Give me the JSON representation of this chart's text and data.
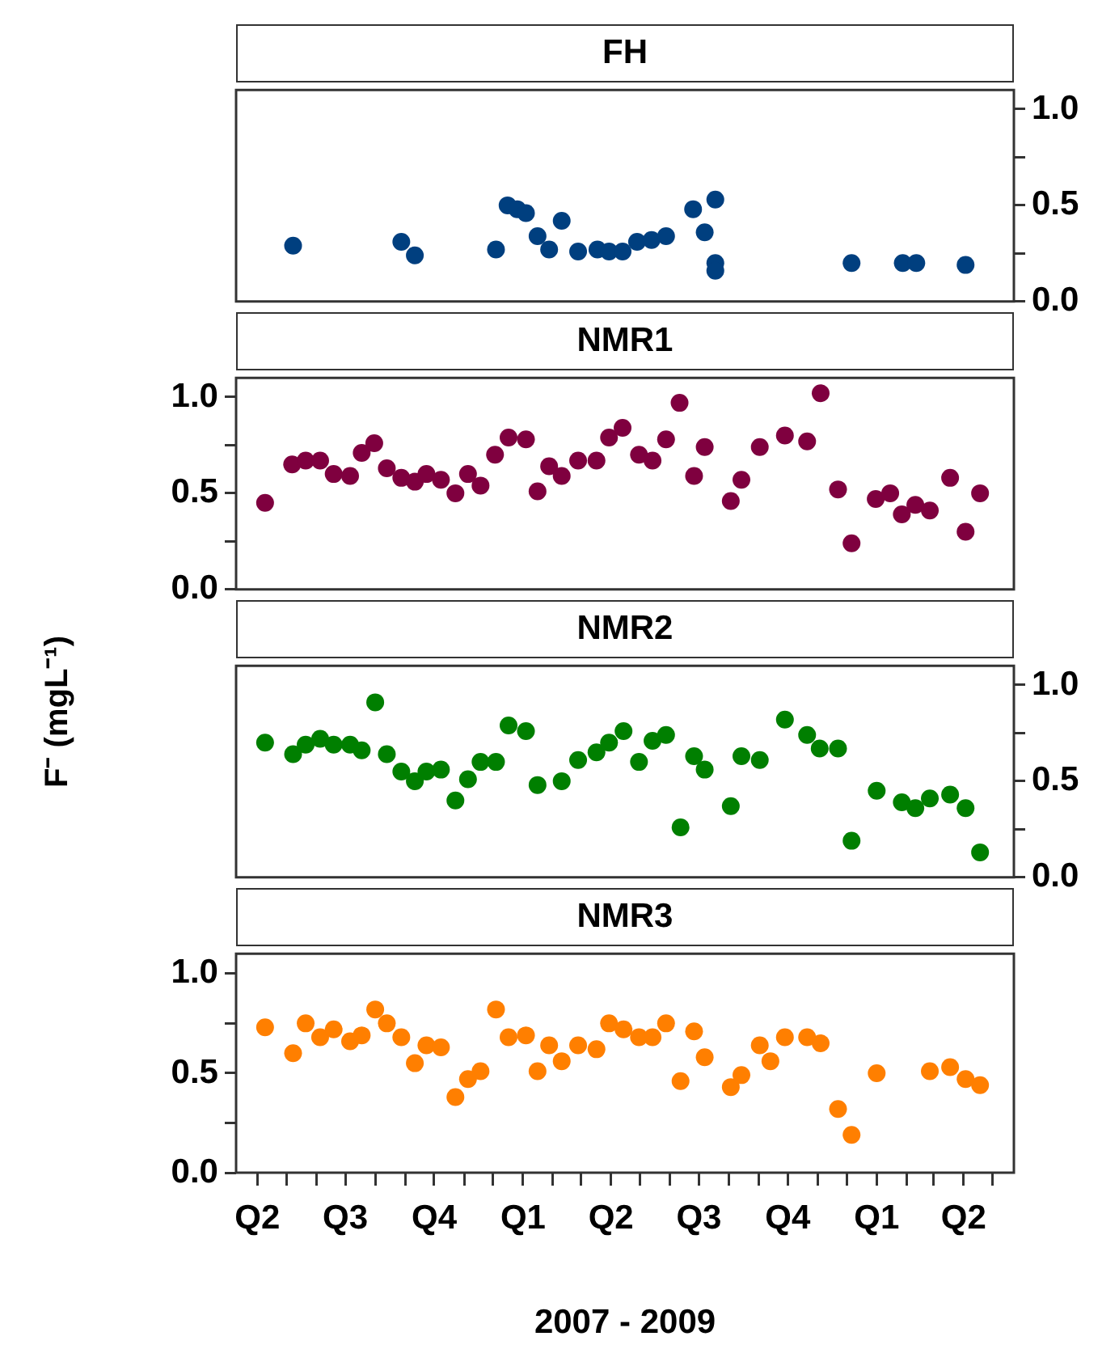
{
  "chart_data": [
    {
      "type": "scatter",
      "title": "FH",
      "marker": "circle",
      "tick_labels": "y",
      "xlim": [
        "2007-03-10",
        "2009-05-23"
      ],
      "y2lim": [
        0,
        1.1
      ],
      "y2ticks": [
        {
          "value": 0,
          "label": "0.0"
        },
        {
          "value": 0.25,
          "label": null
        },
        {
          "value": 0.5,
          "label": "0.5"
        },
        {
          "value": 0.75,
          "label": null
        },
        {
          "value": 1,
          "label": "1.0"
        }
      ],
      "series": [
        {
          "color": "#003f7f",
          "axis": "y2",
          "x": [
            "2007-05-08",
            "2007-08-28",
            "2007-09-11",
            "2007-12-04",
            "2007-12-16",
            "2007-12-26",
            "2008-01-04",
            "2008-01-16",
            "2008-01-28",
            "2008-02-10",
            "2008-02-27",
            "2008-03-18",
            "2008-03-30",
            "2008-04-13",
            "2008-04-28",
            "2008-05-13",
            "2008-05-28",
            "2008-06-25",
            "2008-07-07",
            "2008-07-18",
            "2008-07-18",
            "2008-07-18",
            "2008-12-06",
            "2009-01-28",
            "2009-02-11",
            "2009-04-03"
          ],
          "values": [
            0.29,
            0.31,
            0.24,
            0.27,
            0.5,
            0.48,
            0.46,
            0.34,
            0.27,
            0.42,
            0.26,
            0.27,
            0.26,
            0.26,
            0.31,
            0.32,
            0.34,
            0.48,
            0.36,
            0.53,
            0.2,
            0.16,
            0.2,
            0.2,
            0.2,
            0.19
          ]
        }
      ]
    },
    {
      "type": "scatter",
      "title": "NMR1",
      "ylabel": "F⁻ (mgL⁻¹)",
      "marker": "circle",
      "tick_labels": "y",
      "xlim": [
        "2007-03-10",
        "2009-05-23"
      ],
      "ylim": [
        0,
        1.1
      ],
      "yticks": [
        {
          "value": 0,
          "label": "0.0"
        },
        {
          "value": 0.25,
          "label": null
        },
        {
          "value": 0.5,
          "label": "0.5"
        },
        {
          "value": 0.75,
          "label": null
        },
        {
          "value": 1,
          "label": "1.0"
        }
      ],
      "series": [
        {
          "color": "#7f003f",
          "x": [
            "2007-04-09",
            "2007-05-07",
            "2007-05-21",
            "2007-06-05",
            "2007-06-19",
            "2007-07-06",
            "2007-07-18",
            "2007-07-31",
            "2007-08-13",
            "2007-08-28",
            "2007-09-11",
            "2007-09-23",
            "2007-10-08",
            "2007-10-23",
            "2007-11-05",
            "2007-11-18",
            "2007-12-03",
            "2007-12-17",
            "2008-01-04",
            "2008-01-16",
            "2008-01-28",
            "2008-02-10",
            "2008-02-27",
            "2008-03-17",
            "2008-03-30",
            "2008-04-13",
            "2008-04-30",
            "2008-05-14",
            "2008-05-28",
            "2008-06-11",
            "2008-06-26",
            "2008-07-07",
            "2008-08-03",
            "2008-08-14",
            "2008-09-02",
            "2008-09-28",
            "2008-10-21",
            "2008-11-04",
            "2008-11-22",
            "2008-12-06",
            "2008-12-31",
            "2009-01-15",
            "2009-01-27",
            "2009-02-10",
            "2009-02-25",
            "2009-03-18",
            "2009-04-03",
            "2009-04-18"
          ],
          "values": [
            0.45,
            0.65,
            0.67,
            0.67,
            0.6,
            0.59,
            0.71,
            0.76,
            0.63,
            0.58,
            0.56,
            0.6,
            0.57,
            0.5,
            0.6,
            0.54,
            0.7,
            0.79,
            0.78,
            0.51,
            0.64,
            0.59,
            0.67,
            0.67,
            0.79,
            0.84,
            0.7,
            0.67,
            0.78,
            0.97,
            0.59,
            0.74,
            0.46,
            0.57,
            0.74,
            0.8,
            0.77,
            1.02,
            0.52,
            0.24,
            0.47,
            0.5,
            0.39,
            0.44,
            0.41,
            0.58,
            0.3,
            0.5
          ]
        }
      ]
    },
    {
      "type": "scatter",
      "title": "NMR2",
      "marker": "circle",
      "tick_labels": "y",
      "xlim": [
        "2007-03-10",
        "2009-05-23"
      ],
      "y2lim": [
        0,
        1.1
      ],
      "y2ticks": [
        {
          "value": 0,
          "label": "0.0"
        },
        {
          "value": 0.25,
          "label": null
        },
        {
          "value": 0.5,
          "label": "0.5"
        },
        {
          "value": 0.75,
          "label": null
        },
        {
          "value": 1,
          "label": "1.0"
        }
      ],
      "series": [
        {
          "color": "#007f00",
          "axis": "y2",
          "x": [
            "2007-04-09",
            "2007-05-08",
            "2007-05-21",
            "2007-06-05",
            "2007-06-19",
            "2007-07-06",
            "2007-07-18",
            "2007-08-01",
            "2007-08-13",
            "2007-08-28",
            "2007-09-11",
            "2007-09-23",
            "2007-10-08",
            "2007-10-23",
            "2007-11-05",
            "2007-11-18",
            "2007-12-04",
            "2007-12-17",
            "2008-01-04",
            "2008-01-16",
            "2008-02-10",
            "2008-02-27",
            "2008-03-17",
            "2008-03-30",
            "2008-04-14",
            "2008-04-30",
            "2008-05-14",
            "2008-05-28",
            "2008-06-12",
            "2008-06-26",
            "2008-07-07",
            "2008-08-03",
            "2008-08-14",
            "2008-09-02",
            "2008-09-28",
            "2008-10-21",
            "2008-11-03",
            "2008-11-22",
            "2008-12-06",
            "2009-01-01",
            "2009-01-27",
            "2009-02-10",
            "2009-02-25",
            "2009-03-18",
            "2009-04-03",
            "2009-04-18"
          ],
          "values": [
            0.7,
            0.64,
            0.69,
            0.72,
            0.69,
            0.69,
            0.66,
            0.91,
            0.64,
            0.55,
            0.5,
            0.55,
            0.56,
            0.4,
            0.51,
            0.6,
            0.6,
            0.79,
            0.76,
            0.48,
            0.5,
            0.61,
            0.65,
            0.7,
            0.76,
            0.6,
            0.71,
            0.74,
            0.26,
            0.63,
            0.56,
            0.37,
            0.63,
            0.61,
            0.82,
            0.74,
            0.67,
            0.67,
            0.19,
            0.45,
            0.39,
            0.36,
            0.41,
            0.43,
            0.36,
            0.13
          ]
        }
      ]
    },
    {
      "type": "scatter",
      "title": "NMR3",
      "xlabel": "2007 - 2009",
      "marker": "circle",
      "xlim": [
        "2007-03-10",
        "2009-05-23"
      ],
      "xticks": [
        {
          "value": "2007-04",
          "label": "Q2"
        },
        {
          "value": "2007-05",
          "label": null
        },
        {
          "value": "2007-06",
          "label": null
        },
        {
          "value": "2007-07",
          "label": "Q3"
        },
        {
          "value": "2007-08",
          "label": null
        },
        {
          "value": "2007-09",
          "label": null
        },
        {
          "value": "2007-10",
          "label": "Q4"
        },
        {
          "value": "2007-11",
          "label": null
        },
        {
          "value": "2007-12",
          "label": null
        },
        {
          "value": "2008-01",
          "label": "Q1"
        },
        {
          "value": "2008-02",
          "label": null
        },
        {
          "value": "2008-03",
          "label": null
        },
        {
          "value": "2008-04",
          "label": "Q2"
        },
        {
          "value": "2008-05",
          "label": null
        },
        {
          "value": "2008-06",
          "label": null
        },
        {
          "value": "2008-07",
          "label": "Q3"
        },
        {
          "value": "2008-08",
          "label": null
        },
        {
          "value": "2008-09",
          "label": null
        },
        {
          "value": "2008-10",
          "label": "Q4"
        },
        {
          "value": "2008-11",
          "label": null
        },
        {
          "value": "2008-12",
          "label": null
        },
        {
          "value": "2009-01",
          "label": "Q1"
        },
        {
          "value": "2009-02",
          "label": null
        },
        {
          "value": "2009-03",
          "label": null
        },
        {
          "value": "2009-04",
          "label": "Q2"
        },
        {
          "value": "2009-05",
          "label": null
        }
      ],
      "ylim": [
        0,
        1.1
      ],
      "yticks": [
        {
          "value": 0,
          "label": "0.0"
        },
        {
          "value": 0.25,
          "label": null
        },
        {
          "value": 0.5,
          "label": "0.5"
        },
        {
          "value": 0.75,
          "label": null
        },
        {
          "value": 1,
          "label": "1.0"
        }
      ],
      "series": [
        {
          "color": "#ff7f00",
          "x": [
            "2007-04-09",
            "2007-05-08",
            "2007-05-21",
            "2007-06-05",
            "2007-06-19",
            "2007-07-06",
            "2007-07-18",
            "2007-08-01",
            "2007-08-13",
            "2007-08-28",
            "2007-09-11",
            "2007-09-23",
            "2007-10-08",
            "2007-10-23",
            "2007-11-05",
            "2007-11-18",
            "2007-12-04",
            "2007-12-17",
            "2008-01-04",
            "2008-01-16",
            "2008-01-28",
            "2008-02-10",
            "2008-02-27",
            "2008-03-17",
            "2008-03-30",
            "2008-04-14",
            "2008-04-30",
            "2008-05-14",
            "2008-05-28",
            "2008-06-12",
            "2008-06-26",
            "2008-07-07",
            "2008-08-03",
            "2008-08-14",
            "2008-09-02",
            "2008-09-13",
            "2008-09-28",
            "2008-10-21",
            "2008-11-04",
            "2008-11-22",
            "2008-12-06",
            "2009-01-01",
            "2009-02-25",
            "2009-03-18",
            "2009-04-03",
            "2009-04-18"
          ],
          "values": [
            0.73,
            0.6,
            0.75,
            0.68,
            0.72,
            0.66,
            0.69,
            0.82,
            0.75,
            0.68,
            0.55,
            0.64,
            0.63,
            0.38,
            0.47,
            0.51,
            0.82,
            0.68,
            0.69,
            0.51,
            0.64,
            0.56,
            0.64,
            0.62,
            0.75,
            0.72,
            0.68,
            0.68,
            0.75,
            0.46,
            0.71,
            0.58,
            0.43,
            0.49,
            0.64,
            0.56,
            0.68,
            0.68,
            0.65,
            0.32,
            0.19,
            0.5,
            0.51,
            0.53,
            0.47,
            0.44
          ]
        }
      ]
    }
  ]
}
